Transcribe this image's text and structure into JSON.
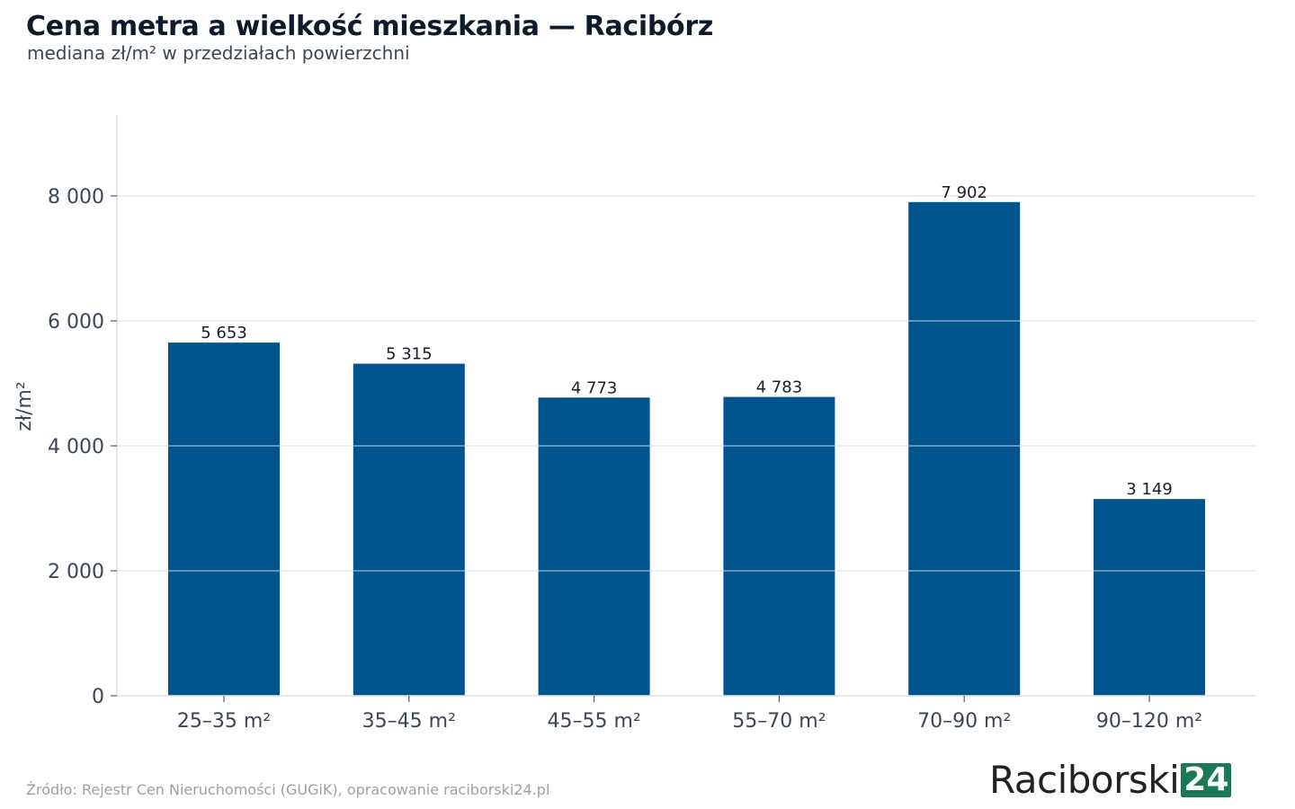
{
  "header": {
    "title": "Cena metra a wielkość mieszkania — Racibórz",
    "subtitle": "mediana zł/m² w przedziałach powierzchni"
  },
  "footer": {
    "source": "Źródło: Rejestr Cen Nieruchomości (GUGiK), opracowanie raciborski24.pl",
    "logo_text": "Raciborski",
    "logo_badge": "24"
  },
  "colors": {
    "bar": "#00558e",
    "grid": "#e3e5e8",
    "logo_badge": "#1a7a56"
  },
  "chart_data": {
    "type": "bar",
    "title": "Cena metra a wielkość mieszkania — Racibórz",
    "subtitle": "mediana zł/m² w przedziałach powierzchni",
    "xlabel": "",
    "ylabel": "zł/m²",
    "categories": [
      "25–35 m²",
      "35–45 m²",
      "45–55 m²",
      "55–70 m²",
      "70–90 m²",
      "90–120 m²"
    ],
    "values": [
      5653,
      5315,
      4773,
      4783,
      7902,
      3149
    ],
    "value_labels": [
      "5 653",
      "5 315",
      "4 773",
      "4 783",
      "7 902",
      "3 149"
    ],
    "ylim": [
      0,
      9300
    ],
    "yticks": [
      0,
      2000,
      4000,
      6000,
      8000
    ],
    "ytick_labels": [
      "0",
      "2 000",
      "4 000",
      "6 000",
      "8 000"
    ],
    "grid": true,
    "legend": "none"
  }
}
